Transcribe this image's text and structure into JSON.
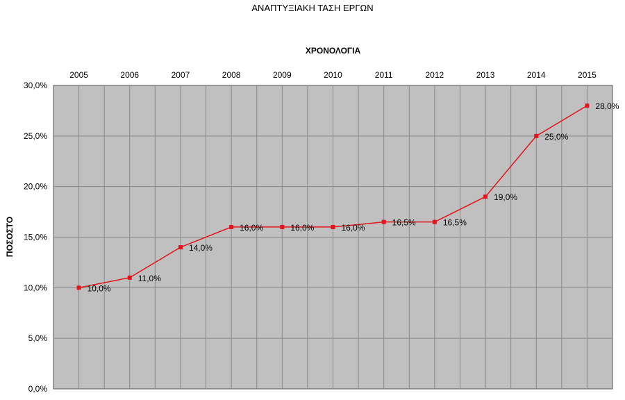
{
  "chart_data": {
    "type": "line",
    "title": "ΑΝΑΠΤΥΞΙΑΚΗ ΤΑΣΗ ΕΡΓΩΝ",
    "xlabel": "ΧΡΟΝΟΛΟΓΙΑ",
    "ylabel": "ΠΟΣΟΣΤΟ",
    "categories": [
      "2005",
      "2006",
      "2007",
      "2008",
      "2009",
      "2010",
      "2011",
      "2012",
      "2013",
      "2014",
      "2015"
    ],
    "values": [
      10.0,
      11.0,
      14.0,
      16.0,
      16.0,
      16.0,
      16.5,
      16.5,
      19.0,
      25.0,
      28.0
    ],
    "data_labels": [
      "10,0%",
      "11,0%",
      "14,0%",
      "16,0%",
      "16,0%",
      "16,0%",
      "16,5%",
      "16,5%",
      "19,0%",
      "25,0%",
      "28,0%"
    ],
    "ylim": [
      0,
      30
    ],
    "yticks": [
      "0,0%",
      "5,0%",
      "10,0%",
      "15,0%",
      "20,0%",
      "25,0%",
      "30,0%"
    ],
    "x_axis_position": "top",
    "grid": true,
    "legend": "none",
    "colors": {
      "series": "#e3141c",
      "plot_background": "#c0c0c0",
      "grid": "#888888"
    }
  }
}
